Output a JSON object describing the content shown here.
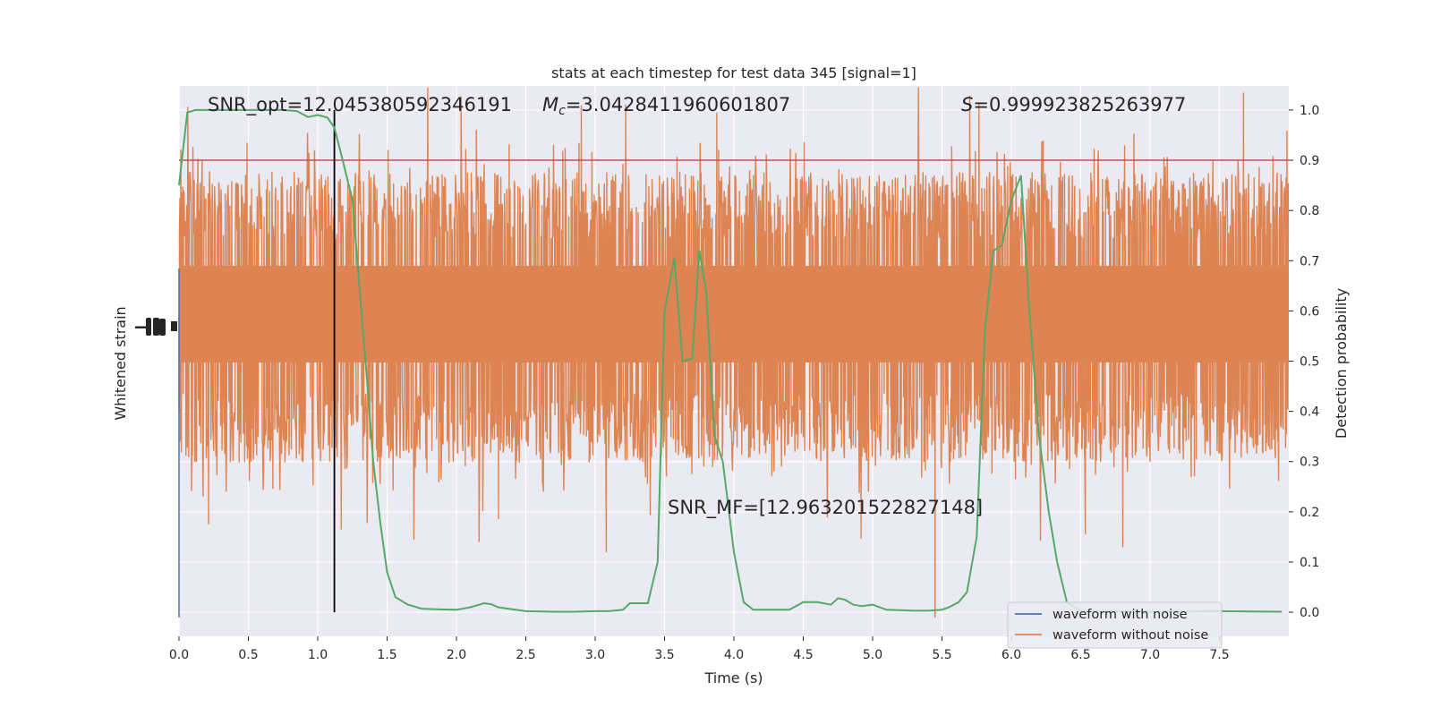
{
  "chart_data": {
    "type": "line",
    "title": "stats at each timestep for test data 345 [signal=1]",
    "xlabel": "Time (s)",
    "ylabel_left": "Whitened strain",
    "ylabel_right": "Detection probability",
    "xlim": [
      0.0,
      8.0
    ],
    "ylim_right": [
      -0.048,
      1.048
    ],
    "xticks": [
      "0.0",
      "0.5",
      "1.0",
      "1.5",
      "2.0",
      "2.5",
      "3.0",
      "3.5",
      "4.0",
      "4.5",
      "5.0",
      "5.5",
      "6.0",
      "6.5",
      "7.0",
      "7.5"
    ],
    "yticks_right": [
      "0.0",
      "0.1",
      "0.2",
      "0.3",
      "0.4",
      "0.5",
      "0.6",
      "0.7",
      "0.8",
      "0.9",
      "1.0"
    ],
    "grid": true,
    "threshold": 0.9,
    "event_time": 1.12,
    "annotations": {
      "snr_opt": "SNR_opt=12.045380592346191",
      "mc_symbol": "M",
      "mc_sub": "c",
      "mc_value": "=3.0428411960601807",
      "s_symbol": "S",
      "s_value": "=0.999923825263977",
      "snr_mf": "SNR_MF=[12.963201522827148]"
    },
    "legend": {
      "position": "lower-right",
      "entries": [
        "waveform with noise",
        "waveform without noise"
      ]
    },
    "colors": {
      "noise": "#4c72b0",
      "no_noise": "#dd8452",
      "probability": "#55a868",
      "threshold": "#c44e52",
      "event": "#000000",
      "background": "#eaeaf2"
    },
    "series": [
      {
        "role": "probability",
        "x": [
          0.0,
          0.06,
          0.12,
          0.25,
          0.5,
          0.75,
          0.85,
          0.93,
          1.0,
          1.07,
          1.12,
          1.18,
          1.25,
          1.3,
          1.35,
          1.4,
          1.45,
          1.5,
          1.56,
          1.65,
          1.75,
          1.85,
          2.0,
          2.1,
          2.2,
          2.25,
          2.3,
          2.5,
          2.7,
          2.85,
          3.0,
          3.1,
          3.2,
          3.25,
          3.3,
          3.38,
          3.45,
          3.5,
          3.57,
          3.63,
          3.7,
          3.75,
          3.8,
          3.86,
          3.92,
          4.0,
          4.07,
          4.14,
          4.3,
          4.4,
          4.5,
          4.6,
          4.7,
          4.75,
          4.8,
          4.86,
          4.92,
          5.0,
          5.1,
          5.2,
          5.3,
          5.4,
          5.5,
          5.55,
          5.62,
          5.68,
          5.75,
          5.81,
          5.87,
          5.93,
          6.0,
          6.07,
          6.13,
          6.2,
          6.27,
          6.33,
          6.4,
          6.5,
          6.7,
          7.0,
          7.5,
          7.95
        ],
        "y": [
          0.85,
          0.995,
          1.0,
          1.0,
          1.0,
          1.0,
          0.998,
          0.986,
          0.99,
          0.985,
          0.965,
          0.9,
          0.82,
          0.65,
          0.48,
          0.3,
          0.18,
          0.08,
          0.03,
          0.015,
          0.007,
          0.006,
          0.005,
          0.01,
          0.018,
          0.016,
          0.01,
          0.002,
          0.001,
          0.001,
          0.002,
          0.002,
          0.005,
          0.018,
          0.018,
          0.018,
          0.1,
          0.6,
          0.705,
          0.5,
          0.505,
          0.72,
          0.64,
          0.35,
          0.3,
          0.12,
          0.02,
          0.005,
          0.005,
          0.005,
          0.02,
          0.02,
          0.015,
          0.028,
          0.025,
          0.015,
          0.012,
          0.015,
          0.005,
          0.004,
          0.003,
          0.003,
          0.005,
          0.01,
          0.02,
          0.04,
          0.15,
          0.56,
          0.72,
          0.73,
          0.82,
          0.87,
          0.6,
          0.35,
          0.2,
          0.1,
          0.02,
          0.002,
          0.002,
          0.001,
          0.002,
          0.001
        ]
      }
    ]
  }
}
